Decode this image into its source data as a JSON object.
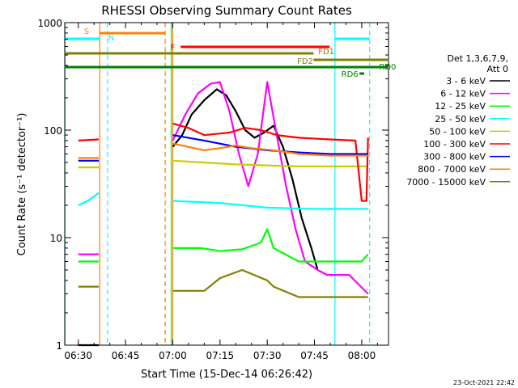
{
  "chart_data": {
    "type": "line",
    "title": "RHESSI Observing Summary Count Rates",
    "xlabel": "Start Time (15-Dec-14 06:26:42)",
    "ylabel": "Count Rate (s⁻¹ detector⁻¹)",
    "x_unit": "minutes",
    "xlim": [
      -4.3,
      98.5
    ],
    "ylim": [
      1,
      1000
    ],
    "y_scale": "log",
    "x_ticks": [
      {
        "m": 0,
        "label": "06:30"
      },
      {
        "m": 15,
        "label": "06:45"
      },
      {
        "m": 30,
        "label": "07:00"
      },
      {
        "m": 45,
        "label": "07:15"
      },
      {
        "m": 60,
        "label": "07:30"
      },
      {
        "m": 75,
        "label": "07:45"
      },
      {
        "m": 90,
        "label": "08:00"
      }
    ],
    "y_ticks": [
      {
        "v": 1,
        "label": "1"
      },
      {
        "v": 10,
        "label": "10"
      },
      {
        "v": 100,
        "label": "100"
      },
      {
        "v": 1000,
        "label": "1000"
      }
    ],
    "legend_header": [
      "Det 1,3,6,7,9,",
      "Att 0"
    ],
    "legend_placement": "right",
    "series": [
      {
        "name": "3 - 6 keV",
        "color": "#000000",
        "segments": [
          [
            [
              0,
              1
            ],
            [
              6.5,
              1
            ]
          ],
          [
            [
              30,
              70
            ],
            [
              33,
              90
            ],
            [
              36,
              140
            ],
            [
              40,
              190
            ],
            [
              44,
              240
            ],
            [
              47,
              210
            ],
            [
              50,
              150
            ],
            [
              53,
              100
            ],
            [
              56,
              85
            ],
            [
              59,
              95
            ],
            [
              62,
              110
            ],
            [
              65,
              70
            ],
            [
              68,
              35
            ],
            [
              71,
              15
            ],
            [
              74,
              8
            ],
            [
              76,
              5
            ]
          ]
        ]
      },
      {
        "name": "6 - 12 keV",
        "color": "#ff00ff",
        "segments": [
          [
            [
              0,
              7
            ],
            [
              6.5,
              7
            ]
          ],
          [
            [
              30,
              80
            ],
            [
              34,
              140
            ],
            [
              38,
              220
            ],
            [
              42,
              270
            ],
            [
              45,
              280
            ],
            [
              48,
              150
            ],
            [
              51,
              60
            ],
            [
              54,
              30
            ],
            [
              57,
              60
            ],
            [
              60,
              280
            ],
            [
              63,
              90
            ],
            [
              66,
              30
            ],
            [
              69,
              12
            ],
            [
              72,
              6
            ],
            [
              76,
              5
            ],
            [
              79,
              4.5
            ],
            [
              86,
              4.5
            ],
            [
              92,
              3
            ]
          ]
        ]
      },
      {
        "name": "12 - 25 keV",
        "color": "#00ff00",
        "segments": [
          [
            [
              0,
              6
            ],
            [
              6.5,
              6
            ]
          ],
          [
            [
              30,
              8
            ],
            [
              39,
              8
            ],
            [
              45,
              7.5
            ],
            [
              52,
              7.8
            ],
            [
              58,
              9
            ],
            [
              60,
              12
            ],
            [
              62,
              8
            ],
            [
              70,
              6
            ],
            [
              90,
              6
            ],
            [
              92,
              7
            ]
          ]
        ]
      },
      {
        "name": "25 - 50 keV",
        "color": "#00ffff",
        "segments": [
          [
            [
              0,
              20
            ],
            [
              3,
              22
            ],
            [
              6.5,
              26
            ]
          ],
          [
            [
              30,
              22
            ],
            [
              45,
              21
            ],
            [
              60,
              19
            ],
            [
              75,
              18.5
            ],
            [
              92,
              18.5
            ]
          ]
        ]
      },
      {
        "name": "50 - 100 keV",
        "color": "#cccc00",
        "segments": [
          [
            [
              0,
              45
            ],
            [
              6.5,
              45
            ]
          ],
          [
            [
              30,
              52
            ],
            [
              40,
              50
            ],
            [
              50,
              48
            ],
            [
              60,
              47
            ],
            [
              70,
              46
            ],
            [
              80,
              46
            ],
            [
              92,
              46
            ]
          ]
        ]
      },
      {
        "name": "100 - 300 keV",
        "color": "#ff0000",
        "segments": [
          [
            [
              0,
              80
            ],
            [
              6.5,
              82
            ]
          ],
          [
            [
              30,
              115
            ],
            [
              35,
              105
            ],
            [
              40,
              90
            ],
            [
              48,
              95
            ],
            [
              53,
              105
            ],
            [
              58,
              100
            ],
            [
              63,
              90
            ],
            [
              70,
              85
            ],
            [
              80,
              82
            ],
            [
              88,
              80
            ],
            [
              90,
              22
            ],
            [
              91.5,
              22
            ],
            [
              92,
              85
            ]
          ]
        ]
      },
      {
        "name": "300 - 800 keV",
        "color": "#0000ff",
        "segments": [
          [
            [
              0,
              52
            ],
            [
              6.5,
              52
            ]
          ],
          [
            [
              30,
              90
            ],
            [
              40,
              80
            ],
            [
              50,
              70
            ],
            [
              60,
              65
            ],
            [
              70,
              62
            ],
            [
              80,
              60
            ],
            [
              92,
              60
            ]
          ]
        ]
      },
      {
        "name": "800 - 7000 keV",
        "color": "#ff8000",
        "segments": [
          [
            [
              0,
              55
            ],
            [
              6.5,
              55
            ]
          ],
          [
            [
              30,
              75
            ],
            [
              40,
              65
            ],
            [
              45,
              68
            ],
            [
              50,
              72
            ],
            [
              55,
              68
            ],
            [
              62,
              65
            ],
            [
              70,
              60
            ],
            [
              80,
              58
            ],
            [
              92,
              58
            ]
          ]
        ]
      },
      {
        "name": "7000 - 15000 keV",
        "color": "#808000",
        "segments": [
          [
            [
              0,
              3.5
            ],
            [
              6.5,
              3.5
            ]
          ],
          [
            [
              30,
              3.2
            ],
            [
              40,
              3.2
            ],
            [
              45,
              4.2
            ],
            [
              52,
              5
            ],
            [
              60,
              4
            ],
            [
              62,
              3.5
            ],
            [
              70,
              2.8
            ],
            [
              80,
              2.8
            ],
            [
              92,
              2.8
            ]
          ]
        ]
      }
    ],
    "vertical_lines": [
      {
        "m": -4.2,
        "color": "#00ffff",
        "dash": false
      },
      {
        "m": 6.8,
        "color": "#ff8000",
        "dash": false
      },
      {
        "m": 9.3,
        "color": "#00ffff",
        "dash": true
      },
      {
        "m": 27.6,
        "color": "#ff8000",
        "dash": true
      },
      {
        "m": 29.5,
        "color": "#00ff00",
        "dash": false
      },
      {
        "m": 30.0,
        "color": "#ff8000",
        "dash": false
      },
      {
        "m": 81.5,
        "color": "#00ffff",
        "dash": false
      },
      {
        "m": 92.5,
        "color": "#00ffff",
        "dash": true
      }
    ],
    "flag_bars": [
      {
        "label": "S",
        "color": "#ff8000",
        "x1": 6.8,
        "x2": 27.6,
        "label_at": 1.8
      },
      {
        "label": "N",
        "color": "#00ffff",
        "x1": -4.2,
        "x2": 6.8,
        "label_at": 9.5
      },
      {
        "label": "N",
        "color": "#00ffff",
        "x1": 81.5,
        "x2": 92.5,
        "label_at": null
      },
      {
        "label": "F",
        "color": "#ff0000",
        "x1": 32.5,
        "x2": 79.8,
        "label_at": 29.2
      },
      {
        "label": "FD1",
        "color": "#808000",
        "x1": -4.2,
        "x2": 74.7,
        "label_at": 76.2
      },
      {
        "label": "FD2",
        "color": "#808000",
        "x1": 74.7,
        "x2": 98.5,
        "label_at": 69.5
      },
      {
        "label": "RD0",
        "color": "#008000",
        "x1": -4.2,
        "x2": 98.5,
        "label_at": 93.2
      },
      {
        "label": "RD6",
        "color": "#008000",
        "x1": 89.3,
        "x2": 90.8,
        "label_at": 83.5
      }
    ]
  },
  "footer": {
    "timestamp": "23-Oct-2021 22:42"
  }
}
